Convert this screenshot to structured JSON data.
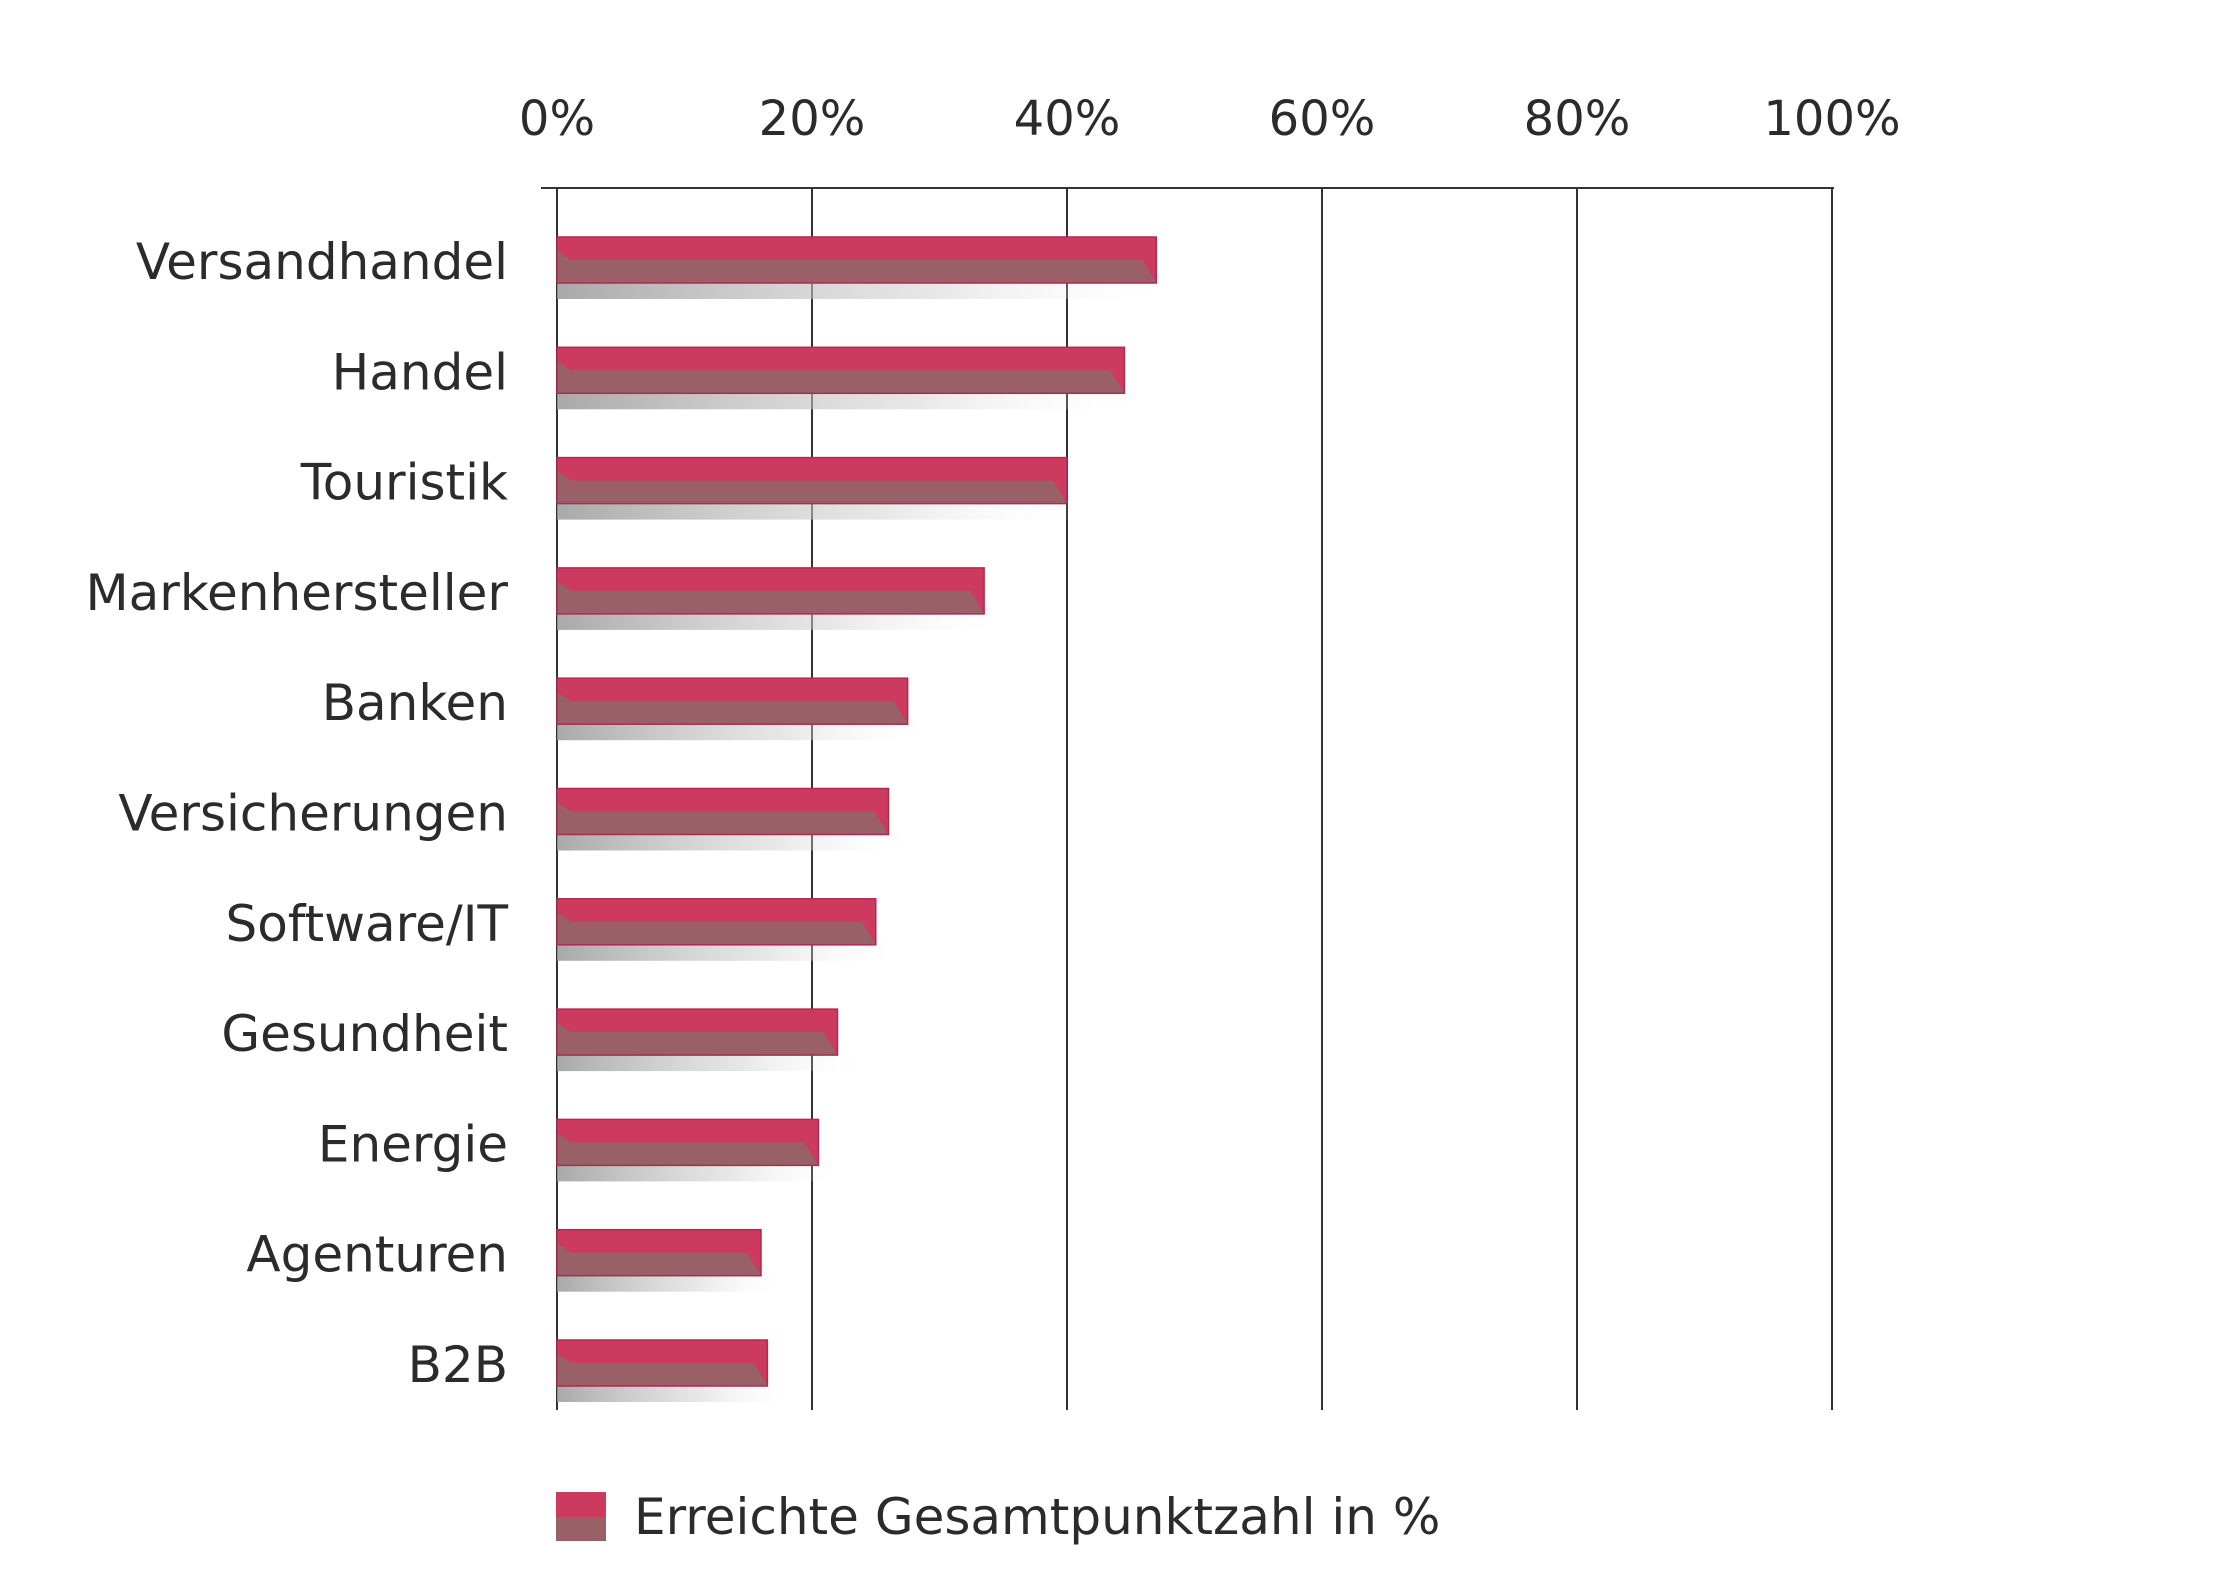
{
  "chart_data": {
    "type": "bar",
    "orientation": "horizontal",
    "title": "",
    "xlabel": "",
    "ylabel": "",
    "xlim": [
      0,
      100
    ],
    "x_ticks": [
      "0%",
      "20%",
      "40%",
      "60%",
      "80%",
      "100%"
    ],
    "x_tick_values": [
      0,
      20,
      40,
      60,
      80,
      100
    ],
    "grid": true,
    "legend_position": "bottom-left",
    "categories": [
      "Versandhandel",
      "Handel",
      "Touristik",
      "Markenhersteller",
      "Banken",
      "Versicherungen",
      "Software/IT",
      "Gesundheit",
      "Energie",
      "Agenturen",
      "B2B"
    ],
    "series": [
      {
        "name": "Erreichte Gesamtpunktzahl in %",
        "values": [
          47,
          44.5,
          40,
          33.5,
          27.5,
          26,
          25,
          22,
          20.5,
          16,
          16.5
        ]
      }
    ],
    "colors": {
      "bar_top": "#cc3a60",
      "bar_bottom": "#9a6068",
      "grid": "#333333",
      "text": "#2b2b2b"
    }
  }
}
